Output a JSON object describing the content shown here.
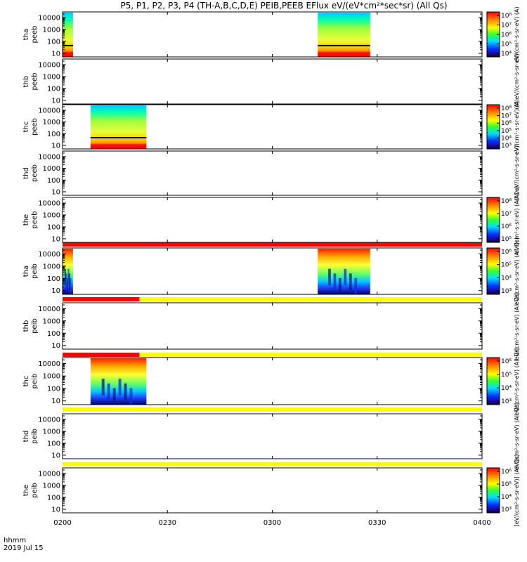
{
  "chart_data": {
    "type": "heatmap",
    "title": "P5, P1, P2, P3, P4 (TH-A,B,C,D,E) PEIB,PEEB EFlux eV/(eV*cm²*sec*sr) (All Qs)",
    "time_label_line1": "hhmm",
    "time_label_line2": "2019 Jul 15",
    "x_ticks": [
      "0200",
      "0230",
      "0300",
      "0330",
      "0400"
    ],
    "x_range": [
      "0200",
      "0400"
    ],
    "y_ticks": [
      "10000",
      "1000",
      "100",
      "10"
    ],
    "y_scale": "log",
    "y_range": [
      5,
      30000
    ],
    "colors": {
      "strip_red": "#ff0000",
      "strip_yellow": "#ffff00",
      "frame": "#000000"
    },
    "panels": [
      {
        "label_line1": "tha",
        "label_line2": "peeb",
        "colorbar": {
          "label": "eV/(cm²-s-sr-eV) (A)",
          "ticks": [
            "10⁸",
            "10⁷",
            "10⁶",
            "10⁵",
            "10⁴"
          ]
        },
        "blocks": [
          {
            "t_start": "0200",
            "t_end": "0203"
          },
          {
            "t_start": "0313",
            "t_end": "0328"
          }
        ]
      },
      {
        "label_line1": "thb",
        "label_line2": "peeb",
        "colorbar": {
          "label": "(A) eV/(cm²-s-sr-eV)",
          "ticks": []
        },
        "blocks": []
      },
      {
        "label_line1": "thc",
        "label_line2": "peeb",
        "colorbar": {
          "label": "eV/(cm²-s-sr-eV) (A)",
          "ticks": [
            "10⁸",
            "10⁷",
            "10⁶",
            "10⁵",
            "10⁴",
            "10³"
          ]
        },
        "blocks": [
          {
            "t_start": "0208",
            "t_end": "0224"
          }
        ]
      },
      {
        "label_line1": "thd",
        "label_line2": "peeb",
        "colorbar": {
          "label": "(A) eV/(cm²-s-sr-eV)",
          "ticks": []
        },
        "blocks": []
      },
      {
        "label_line1": "the",
        "label_line2": "peeb",
        "colorbar": {
          "label": "eV/(cm²-s-sr-eV) (All Qs)",
          "ticks": [
            "10⁸",
            "10⁷",
            "10⁶",
            "10⁵"
          ]
        },
        "blocks": []
      },
      {
        "label_line1": "tha",
        "label_line2": "peib",
        "colorbar": {
          "label": "eV/(cm²-s-sr-eV) (All Qs)",
          "ticks": [
            "10⁶",
            "10⁵",
            "10⁴",
            "10³"
          ]
        },
        "blocks": [
          {
            "t_start": "0200",
            "t_end": "0203"
          },
          {
            "t_start": "0313",
            "t_end": "0328"
          }
        ]
      },
      {
        "label_line1": "thb",
        "label_line2": "peib",
        "colorbar": {
          "label": "eV/(cm²-s-sr-eV) (All Qs)",
          "ticks": []
        },
        "blocks": []
      },
      {
        "label_line1": "thc",
        "label_line2": "peib",
        "colorbar": {
          "label": "eV/(cm²-s-sr-eV) (All Qs)",
          "ticks": [
            "10⁶",
            "10⁵",
            "10⁴",
            "10³"
          ]
        },
        "blocks": [
          {
            "t_start": "0208",
            "t_end": "0224"
          }
        ]
      },
      {
        "label_line1": "thd",
        "label_line2": "peib",
        "colorbar": {
          "label": "eV/(cm²-s-sr-eV) (All Qs)",
          "ticks": []
        },
        "blocks": []
      },
      {
        "label_line1": "the",
        "label_line2": "peib",
        "colorbar": {
          "label": "[eV/(cm²-s-sr-eV)] (All Qs)",
          "ticks": [
            "10⁶",
            "10⁵",
            "10⁴",
            "10³"
          ]
        },
        "blocks": []
      }
    ],
    "mode_strips": [
      {
        "segments": [
          {
            "color": "red",
            "t_start": "0200",
            "t_end": "0400"
          }
        ]
      },
      {
        "segments": [
          {
            "color": "red",
            "t_start": "0200",
            "t_end": "0222"
          },
          {
            "color": "yellow",
            "t_start": "0222",
            "t_end": "0400"
          }
        ]
      },
      {
        "segments": [
          {
            "color": "red",
            "t_start": "0200",
            "t_end": "0222"
          },
          {
            "color": "yellow",
            "t_start": "0222",
            "t_end": "0400"
          }
        ]
      },
      {
        "segments": [
          {
            "color": "yellow",
            "t_start": "0200",
            "t_end": "0400"
          }
        ]
      },
      {
        "segments": [
          {
            "color": "yellow",
            "t_start": "0200",
            "t_end": "0400"
          }
        ]
      }
    ]
  }
}
